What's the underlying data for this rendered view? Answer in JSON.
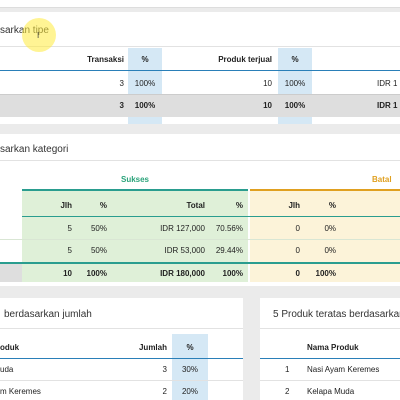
{
  "tipe": {
    "title": "sarkan tipe",
    "headers": {
      "transaksi": "Transaksi",
      "pct1": "%",
      "produk": "Produk terjual",
      "pct2": "%",
      "idr": "IDR 1"
    },
    "row": {
      "transaksi": "3",
      "pct1": "100%",
      "produk": "10",
      "pct2": "100%",
      "idr": "IDR 1"
    },
    "total": {
      "transaksi": "3",
      "pct1": "100%",
      "produk": "10",
      "pct2": "100%",
      "idr": "IDR 1"
    }
  },
  "kategori": {
    "title": "sarkan kategori",
    "group_sukses": "Sukses",
    "group_batal": "Batal",
    "headers": {
      "jlh": "Jlh",
      "pct": "%",
      "total": "Total",
      "pct2": "%",
      "jlh_b": "Jlh",
      "pct_b": "%"
    },
    "rows": [
      {
        "jlh": "5",
        "pct": "50%",
        "total": "IDR 127,000",
        "pct2": "70.56%",
        "jlh_b": "0",
        "pct_b": "0%"
      },
      {
        "jlh": "5",
        "pct": "50%",
        "total": "IDR 53,000",
        "pct2": "29.44%",
        "jlh_b": "0",
        "pct_b": "0%"
      }
    ],
    "total": {
      "jlh": "10",
      "pct": "100%",
      "total": "IDR 180,000",
      "pct2": "100%",
      "jlh_b": "0",
      "pct_b": "100%"
    }
  },
  "jumlah": {
    "title": "berdasarkan jumlah",
    "headers": {
      "produk": "oduk",
      "jumlah": "Jumlah",
      "pct": "%"
    },
    "rows": [
      {
        "produk": "uda",
        "jumlah": "3",
        "pct": "30%"
      },
      {
        "produk": "m Keremes",
        "jumlah": "2",
        "pct": "20%"
      }
    ]
  },
  "teratas": {
    "title": "5 Produk teratas berdasarkan",
    "headers": {
      "nama": "Nama Produk"
    },
    "rows": [
      {
        "no": "1",
        "nama": "Nasi Ayam Keremes"
      },
      {
        "no": "2",
        "nama": "Kelapa Muda"
      }
    ]
  },
  "colors": {
    "sukses": "#2aa37a",
    "batal": "#e0a020",
    "blue": "#d5e8f5",
    "teal_line": "#2a9d8f"
  }
}
